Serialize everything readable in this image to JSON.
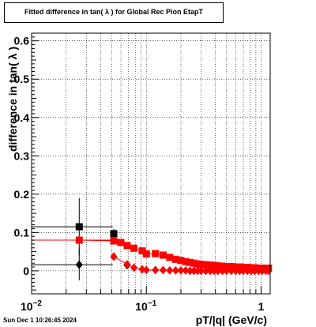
{
  "title": "Fitted difference in tan( λ ) for Global Rec Pion EtapT",
  "timestamp": "Sun Dec  1 10:26:45 2024",
  "chart_data": {
    "type": "scatter",
    "title": "Fitted difference in tan( λ ) for Global Rec Pion EtapT",
    "xlabel": "pT/|q| (GeV/c)",
    "ylabel": "difference in tan( λ )",
    "xscale": "log",
    "xlim": [
      0.01,
      1.2
    ],
    "ylim": [
      -0.06,
      0.62
    ],
    "grid": true,
    "x_ticks": [
      {
        "value": 0.01,
        "base": "10",
        "exp": "−2"
      },
      {
        "value": 0.1,
        "base": "10",
        "exp": "−1"
      },
      {
        "value": 1,
        "label": "1"
      }
    ],
    "y_ticks": [
      {
        "value": 0,
        "label": "0"
      },
      {
        "value": 0.1,
        "label": "0.1"
      },
      {
        "value": 0.2,
        "label": "0.2"
      },
      {
        "value": 0.3,
        "label": "0.3"
      },
      {
        "value": 0.4,
        "label": "0.4"
      },
      {
        "value": 0.5,
        "label": "0.5"
      },
      {
        "value": 0.6,
        "label": "0.6"
      }
    ],
    "series": [
      {
        "marker": "square",
        "color": "#000000",
        "points": [
          {
            "x": 0.026,
            "y": 0.115,
            "xlo": 0.01,
            "xhi": 0.051,
            "ylo": 0.04,
            "yhi": 0.19
          },
          {
            "x": 0.052,
            "y": 0.097,
            "xlo": 0.051,
            "xhi": 0.055,
            "ylo": 0.085,
            "yhi": 0.109
          }
        ]
      },
      {
        "marker": "diamond",
        "color": "#000000",
        "points": [
          {
            "x": 0.026,
            "y": 0.016,
            "xlo": 0.01,
            "xhi": 0.051,
            "ylo": -0.025,
            "yhi": 0.058
          },
          {
            "x": 0.052,
            "y": 0.037,
            "xlo": 0.051,
            "xhi": 0.055,
            "ylo": 0.027,
            "yhi": 0.047
          },
          {
            "x": 0.068,
            "y": 0.015,
            "xlo": 0.066,
            "xhi": 0.07,
            "ylo": 0.01,
            "yhi": 0.02
          }
        ]
      },
      {
        "marker": "square",
        "color": "#ff0000",
        "line": true,
        "points": [
          {
            "x": 0.026,
            "y": 0.08,
            "xlo": 0.01,
            "xhi": 0.051
          },
          {
            "x": 0.052,
            "y": 0.078
          },
          {
            "x": 0.06,
            "y": 0.074
          },
          {
            "x": 0.068,
            "y": 0.066
          },
          {
            "x": 0.078,
            "y": 0.059
          },
          {
            "x": 0.092,
            "y": 0.052
          },
          {
            "x": 0.1,
            "y": 0.044
          },
          {
            "x": 0.12,
            "y": 0.045
          },
          {
            "x": 0.14,
            "y": 0.041
          },
          {
            "x": 0.16,
            "y": 0.035
          },
          {
            "x": 0.18,
            "y": 0.03
          },
          {
            "x": 0.2,
            "y": 0.027
          },
          {
            "x": 0.22,
            "y": 0.024
          },
          {
            "x": 0.24,
            "y": 0.022
          },
          {
            "x": 0.26,
            "y": 0.02
          },
          {
            "x": 0.28,
            "y": 0.018
          },
          {
            "x": 0.3,
            "y": 0.017
          },
          {
            "x": 0.33,
            "y": 0.016
          },
          {
            "x": 0.36,
            "y": 0.015
          },
          {
            "x": 0.39,
            "y": 0.014
          },
          {
            "x": 0.42,
            "y": 0.013
          },
          {
            "x": 0.46,
            "y": 0.012
          },
          {
            "x": 0.5,
            "y": 0.011
          },
          {
            "x": 0.55,
            "y": 0.011
          },
          {
            "x": 0.6,
            "y": 0.01
          },
          {
            "x": 0.65,
            "y": 0.01
          },
          {
            "x": 0.7,
            "y": 0.009
          },
          {
            "x": 0.76,
            "y": 0.009
          },
          {
            "x": 0.82,
            "y": 0.008
          },
          {
            "x": 0.88,
            "y": 0.008
          },
          {
            "x": 0.95,
            "y": 0.007
          },
          {
            "x": 1.02,
            "y": 0.007
          },
          {
            "x": 1.1,
            "y": 0.007
          },
          {
            "x": 1.16,
            "y": 0.007
          }
        ]
      },
      {
        "marker": "diamond",
        "color": "#ff0000",
        "line": true,
        "points": [
          {
            "x": 0.052,
            "y": 0.037
          },
          {
            "x": 0.068,
            "y": 0.017
          },
          {
            "x": 0.078,
            "y": 0.008
          },
          {
            "x": 0.092,
            "y": 0.004
          },
          {
            "x": 0.1,
            "y": 0.002
          },
          {
            "x": 0.12,
            "y": 0.002
          },
          {
            "x": 0.14,
            "y": 0.002
          },
          {
            "x": 0.16,
            "y": 0.001
          },
          {
            "x": 0.18,
            "y": 0.001
          },
          {
            "x": 0.2,
            "y": 0.001
          },
          {
            "x": 0.22,
            "y": 0.001
          },
          {
            "x": 0.24,
            "y": 0.0
          },
          {
            "x": 0.26,
            "y": 0.0
          },
          {
            "x": 0.28,
            "y": 0.0
          },
          {
            "x": 0.3,
            "y": 0.0
          },
          {
            "x": 0.33,
            "y": 0.0
          },
          {
            "x": 0.36,
            "y": 0.0
          },
          {
            "x": 0.39,
            "y": 0.0
          },
          {
            "x": 0.42,
            "y": 0.0
          },
          {
            "x": 0.46,
            "y": 0.0
          },
          {
            "x": 0.5,
            "y": 0.0
          },
          {
            "x": 0.55,
            "y": 0.0
          },
          {
            "x": 0.6,
            "y": 0.0
          },
          {
            "x": 0.65,
            "y": 0.0
          },
          {
            "x": 0.7,
            "y": 0.0
          },
          {
            "x": 0.76,
            "y": 0.0
          },
          {
            "x": 0.82,
            "y": 0.0
          },
          {
            "x": 0.88,
            "y": 0.0
          },
          {
            "x": 0.95,
            "y": 0.0
          },
          {
            "x": 1.02,
            "y": 0.0
          },
          {
            "x": 1.1,
            "y": 0.0
          },
          {
            "x": 1.16,
            "y": 0.0
          }
        ]
      }
    ]
  }
}
